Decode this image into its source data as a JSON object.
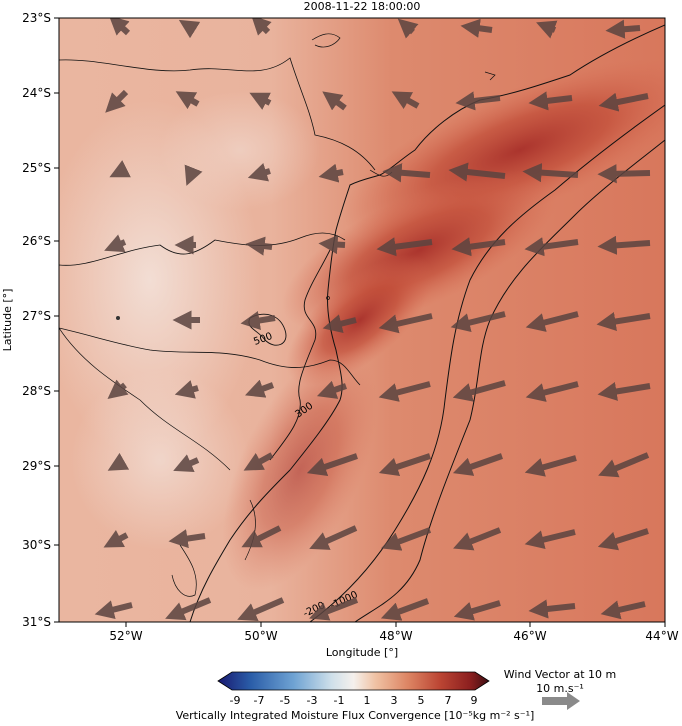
{
  "figure": {
    "timestamp": "2008-11-22 18:00:00",
    "xlabel": "Longitude [°]",
    "ylabel": "Latitude [°]"
  },
  "map": {
    "lon_ticks": [
      "52°W",
      "50°W",
      "48°W",
      "46°W",
      "44°W"
    ],
    "lat_ticks": [
      "23°S",
      "24°S",
      "25°S",
      "26°S",
      "27°S",
      "28°S",
      "29°S",
      "30°S",
      "31°S"
    ],
    "extent": {
      "lon_min": -53,
      "lon_max": -44,
      "lat_min": -31,
      "lat_max": -23
    },
    "contour_labels": [
      "500",
      "300",
      "-200",
      "-1000"
    ],
    "field_colors": {
      "light": "#f0d8cc",
      "mid": "#e29475",
      "dark": "#b63d2c",
      "darkest": "#7c1d18"
    },
    "arrow_color": "#5b4440"
  },
  "colorbar": {
    "ticks": [
      "-9",
      "-7",
      "-5",
      "-3",
      "-1",
      "1",
      "3",
      "5",
      "7",
      "9"
    ],
    "label": "Vertically Integrated Moisture Flux Convergence [10⁻⁵kg m⁻² s⁻¹]",
    "colors": [
      "#191970",
      "#2a5da8",
      "#6fa3d3",
      "#cfe0ea",
      "#f5f0ec",
      "#f0c3a5",
      "#dd8564",
      "#bb4533",
      "#8c1f1f",
      "#3d0d12"
    ]
  },
  "wind_key": {
    "title": "Wind Vector at 10 m",
    "speed": "10 m.s⁻¹"
  }
}
